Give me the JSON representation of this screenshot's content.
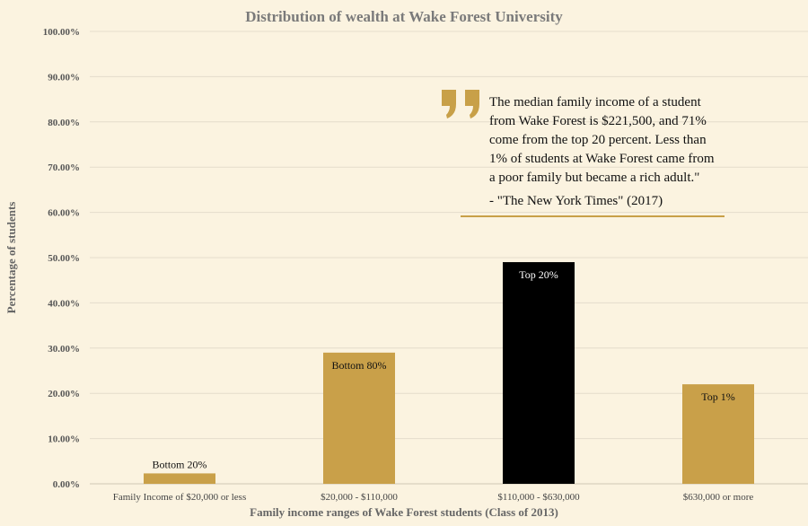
{
  "chart_data": {
    "type": "bar",
    "title": "Distribution  of wealth at Wake Forest University",
    "xlabel": "Family income ranges of Wake Forest students (Class of 2013)",
    "ylabel": "Percentage of students",
    "ylim": [
      0,
      100
    ],
    "yticks": [
      "0.00%",
      "10.00%",
      "20.00%",
      "30.00%",
      "40.00%",
      "50.00%",
      "60.00%",
      "70.00%",
      "80.00%",
      "90.00%",
      "100.00%"
    ],
    "categories": [
      "Family Income of $20,000 or less",
      "$20,000 - $110,000",
      "$110,000 - $630,000",
      "$630,000 or more"
    ],
    "values": [
      2.3,
      29.0,
      49.0,
      22.0
    ],
    "bar_labels": [
      "Bottom 20%",
      "Bottom 80%",
      "Top 20%",
      "Top 1%"
    ],
    "bar_colors": [
      "#c9a049",
      "#c9a049",
      "#000000",
      "#c9a049"
    ],
    "label_colors": [
      "#111111",
      "#111111",
      "#ffffff",
      "#111111"
    ],
    "grid": true
  },
  "quote": {
    "text": "The median family income of a student\nfrom Wake Forest is $221,500, and 71%\ncome from the top 20 percent. Less than\n1% of students at Wake Forest came from\na poor family but became a rich adult.\"",
    "source": "- \"The New York Times\" (2017)",
    "accent_color": "#c8a048",
    "icon": "quote-marks-icon"
  }
}
